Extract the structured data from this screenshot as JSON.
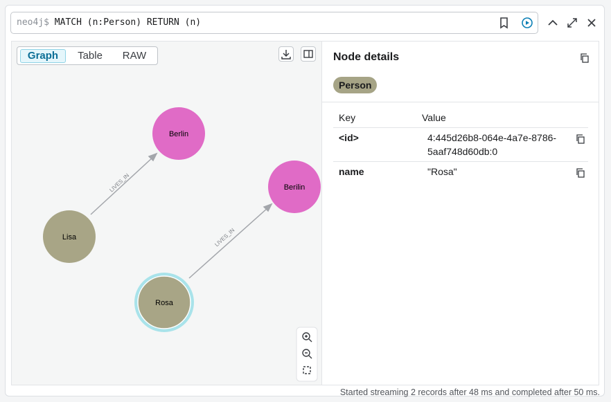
{
  "query": {
    "prompt": "neo4j$",
    "text": "MATCH (n:Person) RETURN (n)"
  },
  "tabs": [
    "Graph",
    "Table",
    "RAW"
  ],
  "graph": {
    "nodes": [
      {
        "label": "Berlin"
      },
      {
        "label": "Berilin"
      },
      {
        "label": "Lisa"
      },
      {
        "label": "Rosa"
      }
    ],
    "edges": [
      {
        "label": "LIVES_IN"
      },
      {
        "label": "LIVES_IN"
      }
    ]
  },
  "details": {
    "title": "Node details",
    "labels": [
      "Person"
    ],
    "table": {
      "header": [
        "Key",
        "Value"
      ],
      "rows": [
        [
          "<id>",
          "4:445d26b8-064e-4a7e-8786-5aaf748d60db:0"
        ],
        [
          "name",
          "\"Rosa\""
        ]
      ]
    }
  },
  "status": "Started streaming 2 records after 48 ms and completed after 50 ms."
}
